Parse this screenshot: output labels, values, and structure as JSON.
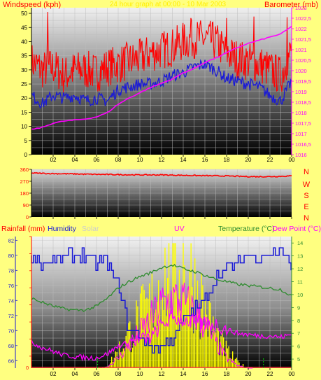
{
  "colors": {
    "background": "#ffff80",
    "wind_avg": "#1a1ad6",
    "wind_gust": "#ff0000",
    "barometer": "#ff00ff",
    "wind_dir": "#ff0000",
    "humidity": "#1a1ad6",
    "temperature": "#2e8b2e",
    "dew_point": "#ff00ff",
    "rainfall": "#ff4040",
    "uv": "#ff00ff",
    "solar": "#ffff00",
    "solar_max": "#00d000",
    "panel_top": "#e8e8e8",
    "panel_bottom": "#000000",
    "grid": "#bdbdbd"
  },
  "chart_data": [
    {
      "type": "line",
      "panel": "wind-barometer",
      "title": "24 hour graph at 00:00 - 10 Mar 2003",
      "ylabel_left": "Windspeed (kph)",
      "ylabel_right": "Barometer (mb)",
      "x_tick_labels": [
        "02",
        "04",
        "06",
        "08",
        "10",
        "12",
        "14",
        "16",
        "18",
        "20",
        "22",
        "00"
      ],
      "ylim_left": [
        0,
        52
      ],
      "ylim_right": [
        1016,
        1023
      ],
      "y_ticks_left": [
        "0",
        "5",
        "10",
        "15",
        "20",
        "25",
        "30",
        "35",
        "40",
        "45",
        "50"
      ],
      "y_ticks_right": [
        "1016",
        "1016,5",
        "1017",
        "1017,5",
        "1018",
        "1018,5",
        "1019",
        "1019,5",
        "1020",
        "1020,5",
        "1021",
        "1021,5",
        "1022",
        "1022,5",
        "1023"
      ],
      "x": [
        0,
        1,
        2,
        3,
        4,
        5,
        6,
        7,
        8,
        9,
        10,
        11,
        12,
        13,
        14,
        15,
        16,
        17,
        18,
        19,
        20,
        21,
        22,
        23,
        24
      ],
      "series": [
        {
          "name": "Windspeed",
          "axis": "left",
          "values": [
            21,
            18,
            21,
            20,
            21,
            19,
            20,
            19,
            23,
            24,
            25,
            25,
            26,
            28,
            29,
            31,
            32,
            30,
            27,
            26,
            25,
            24,
            21,
            19,
            26
          ]
        },
        {
          "name": "Wind gust",
          "axis": "left",
          "values": [
            33,
            30,
            31,
            28,
            30,
            30,
            29,
            31,
            32,
            33,
            34,
            36,
            37,
            38,
            40,
            41,
            41,
            40,
            36,
            34,
            33,
            32,
            30,
            28,
            37
          ]
        },
        {
          "name": "Barometer",
          "axis": "right",
          "values": [
            1017.2,
            1017.3,
            1017.5,
            1017.6,
            1017.65,
            1017.7,
            1017.8,
            1018.0,
            1018.4,
            1018.7,
            1018.95,
            1019.2,
            1019.4,
            1019.6,
            1019.9,
            1020.1,
            1020.4,
            1020.6,
            1020.85,
            1021.1,
            1021.3,
            1021.45,
            1021.6,
            1021.75,
            1022.1
          ]
        }
      ]
    },
    {
      "type": "line",
      "panel": "wind-direction",
      "ylim": [
        0,
        360
      ],
      "y_ticks": [
        "0",
        "90",
        "180",
        "270",
        "360"
      ],
      "direction_labels": [
        "N",
        "W",
        "S",
        "E",
        "N"
      ],
      "x": [
        0,
        2,
        4,
        6,
        8,
        10,
        12,
        14,
        16,
        18,
        20,
        22,
        24
      ],
      "series": [
        {
          "name": "Wind direction",
          "values": [
            332,
            328,
            325,
            322,
            320,
            318,
            318,
            315,
            312,
            310,
            305,
            305,
            310
          ]
        }
      ]
    },
    {
      "type": "line",
      "panel": "rain-humidity-solar-uv-temp",
      "legend": [
        "Rainfall (mm)",
        "Humidity",
        "Solar",
        "UV",
        "Temperature (°C)",
        "Dew Point (°C)"
      ],
      "x_tick_labels": [
        "02",
        "04",
        "06",
        "08",
        "10",
        "12",
        "14",
        "16",
        "18",
        "20",
        "22",
        "00"
      ],
      "y_ticks_rainfall": [
        "0"
      ],
      "y_ticks_humidity": [
        "66",
        "68",
        "70",
        "72",
        "74",
        "76",
        "78",
        "80",
        "82"
      ],
      "y_ticks_temperature": [
        "5",
        "6",
        "7",
        "8",
        "9",
        "10",
        "11",
        "12",
        "13",
        "14"
      ],
      "ylim_humidity": [
        65,
        82.5
      ],
      "ylim_temperature": [
        4.3,
        14.5
      ],
      "ylim_solar": [
        0,
        1
      ],
      "x": [
        0,
        1,
        2,
        3,
        4,
        5,
        6,
        7,
        8,
        9,
        10,
        11,
        12,
        13,
        14,
        15,
        16,
        17,
        18,
        19,
        20,
        21,
        22,
        23,
        24
      ],
      "series": [
        {
          "name": "Humidity",
          "axis": "humidity",
          "values": [
            80,
            79,
            79,
            80,
            80,
            80,
            79,
            79,
            76,
            70,
            69,
            68,
            68,
            69,
            71,
            73,
            74,
            77,
            78,
            79,
            80,
            80,
            80,
            81,
            78
          ]
        },
        {
          "name": "Temperature (°C)",
          "axis": "temperature",
          "values": [
            9.7,
            9.4,
            9.1,
            8.9,
            8.8,
            8.8,
            9.1,
            9.7,
            10.5,
            11.0,
            11.4,
            11.7,
            12.1,
            12.3,
            12.0,
            11.8,
            11.5,
            11.2,
            11.0,
            10.8,
            10.7,
            10.6,
            10.5,
            10.4,
            9.9
          ]
        },
        {
          "name": "Dew Point (°C)",
          "axis": "temperature",
          "values": [
            6.3,
            5.9,
            5.6,
            5.3,
            5.2,
            5.1,
            5.1,
            5.4,
            6.0,
            6.3,
            6.5,
            6.6,
            7.6,
            8.2,
            8.0,
            7.9,
            7.7,
            7.7,
            7.3,
            7.0,
            6.9,
            6.8,
            6.8,
            6.7,
            6.9
          ]
        },
        {
          "name": "Solar",
          "axis": "solar",
          "values": [
            0,
            0,
            0,
            0,
            0,
            0,
            0,
            0.02,
            0.15,
            0.3,
            0.45,
            0.55,
            0.85,
            0.8,
            0.95,
            0.75,
            0.55,
            0.3,
            0.15,
            0.05,
            0,
            0,
            0,
            0,
            0
          ]
        },
        {
          "name": "UV",
          "axis": "solar",
          "values": [
            0,
            0,
            0,
            0,
            0,
            0,
            0,
            0.01,
            0.08,
            0.18,
            0.28,
            0.38,
            0.5,
            0.55,
            0.52,
            0.45,
            0.35,
            0.2,
            0.08,
            0.02,
            0,
            0,
            0,
            0,
            0
          ]
        }
      ]
    }
  ]
}
